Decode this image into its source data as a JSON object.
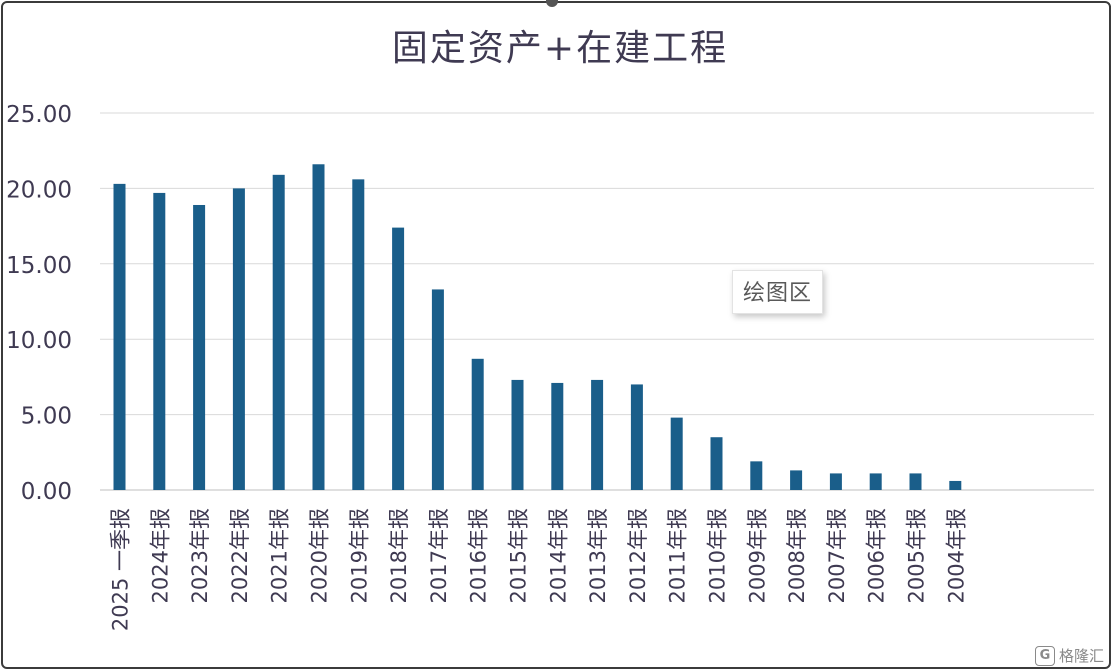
{
  "chart_data": {
    "type": "bar",
    "title": "固定资产+在建工程",
    "categories": [
      "2025 一季报",
      "2024年报",
      "2023年报",
      "2022年报",
      "2021年报",
      "2020年报",
      "2019年报",
      "2018年报",
      "2017年报",
      "2016年报",
      "2015年报",
      "2014年报",
      "2013年报",
      "2012年报",
      "2011年报",
      "2010年报",
      "2009年报",
      "2008年报",
      "2007年报",
      "2006年报",
      "2005年报",
      "2004年报"
    ],
    "values": [
      20.3,
      19.7,
      18.9,
      20.0,
      20.9,
      21.6,
      20.6,
      17.4,
      13.3,
      8.7,
      7.3,
      7.1,
      7.3,
      7.0,
      4.8,
      3.5,
      1.9,
      1.3,
      1.1,
      1.1,
      1.1,
      0.6
    ],
    "yticks": [
      "25.00",
      "20.00",
      "15.00",
      "10.00",
      "5.00",
      "0.00"
    ],
    "ylim": [
      0,
      25
    ],
    "bar_color": "#1a5e8a",
    "grid": true
  },
  "tooltip": "绘图区",
  "watermark": {
    "icon": "G",
    "text": "格隆汇"
  }
}
